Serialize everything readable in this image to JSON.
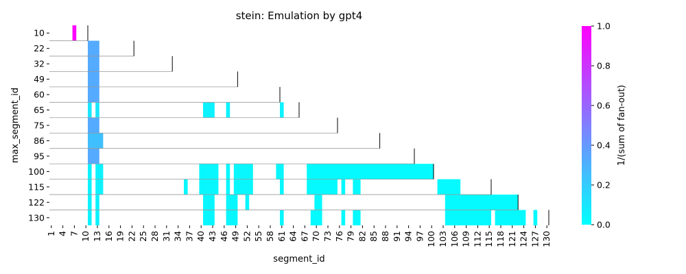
{
  "chart_data": {
    "type": "heatmap",
    "title": "stein: Emulation by gpt4",
    "xlabel": "segment_id",
    "ylabel": "max_segment_id",
    "colorbar_label": "1/(sum of fan-out)",
    "colormap": [
      "#00ffff",
      "#ff00ff"
    ],
    "x_range": [
      1,
      130
    ],
    "x_ticks": [
      1,
      4,
      7,
      10,
      13,
      16,
      19,
      22,
      25,
      28,
      31,
      34,
      37,
      40,
      43,
      46,
      49,
      52,
      55,
      58,
      61,
      64,
      67,
      70,
      73,
      76,
      79,
      82,
      85,
      88,
      91,
      94,
      97,
      100,
      103,
      106,
      109,
      112,
      115,
      118,
      121,
      124,
      127,
      130
    ],
    "colorbar_ticks": [
      "0.0",
      "0.2",
      "0.4",
      "0.6",
      "0.8",
      "1.0"
    ],
    "colorbar_range": [
      0,
      1
    ],
    "rows": [
      {
        "label": "10",
        "max_segment": 10,
        "cells": [
          [
            7,
            7,
            1.0
          ]
        ]
      },
      {
        "label": "22",
        "max_segment": 22,
        "cells": [
          [
            11,
            13,
            0.33
          ]
        ]
      },
      {
        "label": "32",
        "max_segment": 32,
        "cells": [
          [
            11,
            13,
            0.33
          ]
        ]
      },
      {
        "label": "49",
        "max_segment": 49,
        "cells": [
          [
            11,
            13,
            0.33
          ]
        ]
      },
      {
        "label": "60",
        "max_segment": 60,
        "cells": [
          [
            11,
            13,
            0.33
          ]
        ]
      },
      {
        "label": "65",
        "max_segment": 65,
        "cells": [
          [
            11,
            11,
            0.1
          ],
          [
            13,
            13,
            0.1
          ],
          [
            41,
            43,
            0.05
          ],
          [
            47,
            47,
            0.05
          ],
          [
            61,
            61,
            0.05
          ]
        ]
      },
      {
        "label": "75",
        "max_segment": 75,
        "cells": [
          [
            11,
            13,
            0.33
          ]
        ]
      },
      {
        "label": "86",
        "max_segment": 86,
        "cells": [
          [
            11,
            14,
            0.25
          ]
        ]
      },
      {
        "label": "95",
        "max_segment": 95,
        "cells": [
          [
            11,
            13,
            0.33
          ]
        ]
      },
      {
        "label": "100",
        "max_segment": 100,
        "cells": [
          [
            11,
            11,
            0.05
          ],
          [
            13,
            14,
            0.05
          ],
          [
            40,
            44,
            0.03
          ],
          [
            47,
            47,
            0.03
          ],
          [
            49,
            53,
            0.03
          ],
          [
            60,
            61,
            0.03
          ],
          [
            68,
            100,
            0.02
          ]
        ]
      },
      {
        "label": "115",
        "max_segment": 115,
        "cells": [
          [
            11,
            11,
            0.05
          ],
          [
            13,
            14,
            0.05
          ],
          [
            36,
            36,
            0.03
          ],
          [
            40,
            44,
            0.03
          ],
          [
            47,
            47,
            0.03
          ],
          [
            49,
            53,
            0.03
          ],
          [
            61,
            61,
            0.03
          ],
          [
            68,
            75,
            0.02
          ],
          [
            77,
            77,
            0.02
          ],
          [
            80,
            81,
            0.02
          ],
          [
            102,
            107,
            0.02
          ]
        ]
      },
      {
        "label": "122",
        "max_segment": 122,
        "cells": [
          [
            11,
            11,
            0.05
          ],
          [
            13,
            13,
            0.05
          ],
          [
            41,
            43,
            0.03
          ],
          [
            47,
            49,
            0.03
          ],
          [
            52,
            52,
            0.03
          ],
          [
            70,
            71,
            0.02
          ],
          [
            104,
            122,
            0.02
          ]
        ]
      },
      {
        "label": "130",
        "max_segment": 130,
        "cells": [
          [
            11,
            11,
            0.05
          ],
          [
            13,
            13,
            0.05
          ],
          [
            41,
            43,
            0.03
          ],
          [
            47,
            49,
            0.03
          ],
          [
            61,
            61,
            0.03
          ],
          [
            69,
            71,
            0.02
          ],
          [
            77,
            77,
            0.02
          ],
          [
            80,
            81,
            0.02
          ],
          [
            104,
            115,
            0.02
          ],
          [
            117,
            124,
            0.02
          ],
          [
            127,
            127,
            0.02
          ]
        ]
      }
    ]
  }
}
